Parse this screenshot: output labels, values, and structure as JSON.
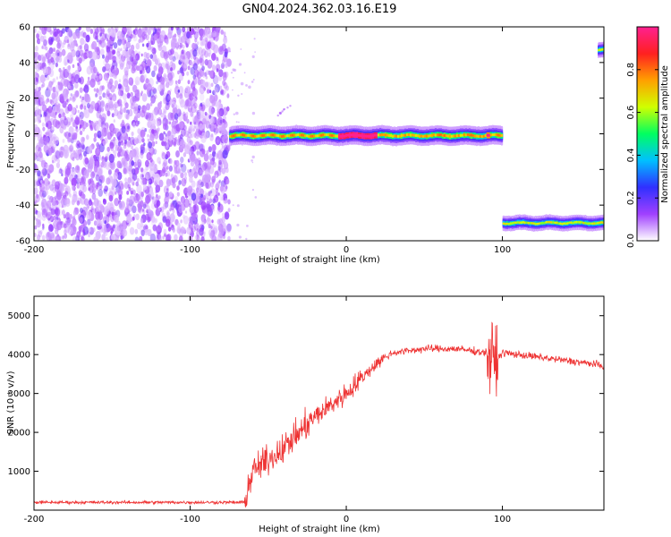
{
  "figure_title": "GN04.2024.362.03.16.E19",
  "chart_data": [
    {
      "type": "heatmap",
      "title": "GN04.2024.362.03.16.E19",
      "xlabel": "Height of straight line (km)",
      "ylabel": "Frequency (Hz)",
      "xlim": [
        -200,
        165
      ],
      "ylim": [
        -60,
        60
      ],
      "xticks": [
        -200,
        -100,
        0,
        100
      ],
      "yticks": [
        -60,
        -40,
        -20,
        0,
        20,
        40,
        60
      ],
      "colorbar": {
        "label": "Normalized spectral amplitude",
        "range": [
          0,
          1
        ],
        "ticks": [
          0,
          0.2,
          0.4,
          0.6,
          0.8
        ],
        "colormap": "rainbow (white-purple-blue-cyan-green-yellow-red-magenta)",
        "colors": [
          "#ffffff",
          "#a040ff",
          "#3030ff",
          "#00c0ff",
          "#00ff60",
          "#d0ff00",
          "#ffa000",
          "#ff2020",
          "#ff2090"
        ]
      },
      "regions": [
        {
          "x_range": [
            -200,
            -75
          ],
          "frequency_range": [
            -60,
            60
          ],
          "amplitude": "low, noisy (0.0-0.2)"
        },
        {
          "x_range": [
            -75,
            100
          ],
          "frequency_center": -1,
          "frequency_width": 5,
          "amplitude": "high (0.3-1.0)",
          "peak_x": [
            -5,
            20
          ]
        },
        {
          "x_range": [
            100,
            165
          ],
          "frequency_center": -50,
          "frequency_width": 4,
          "amplitude": "medium (0.3-0.6)"
        },
        {
          "x_range": [
            161,
            165
          ],
          "frequency_center": 47,
          "frequency_width": 4,
          "amplitude": "medium (0.3-0.6)"
        }
      ]
    },
    {
      "type": "line",
      "xlabel": "Height of straight line (km)",
      "ylabel": "SNR (10 * v/v)",
      "xlim": [
        -200,
        165
      ],
      "ylim": [
        0,
        5500
      ],
      "xticks": [
        -200,
        -100,
        0,
        100
      ],
      "yticks": [
        1000,
        2000,
        3000,
        4000,
        5000
      ],
      "color": "#ee3333",
      "series": [
        {
          "x": [
            -200,
            -150,
            -100,
            -65,
            -60,
            -50,
            -40,
            -30,
            -20,
            -10,
            0,
            10,
            20,
            30,
            40,
            50,
            60,
            70,
            80,
            90,
            95,
            100,
            110,
            120,
            130,
            140,
            150,
            160,
            165
          ],
          "y": [
            200,
            200,
            200,
            200,
            1000,
            1300,
            1600,
            2000,
            2400,
            2700,
            3000,
            3400,
            3800,
            4050,
            4100,
            4150,
            4150,
            4150,
            4100,
            4050,
            3800,
            4050,
            4000,
            3950,
            3900,
            3850,
            3800,
            3750,
            3700
          ]
        }
      ]
    }
  ]
}
